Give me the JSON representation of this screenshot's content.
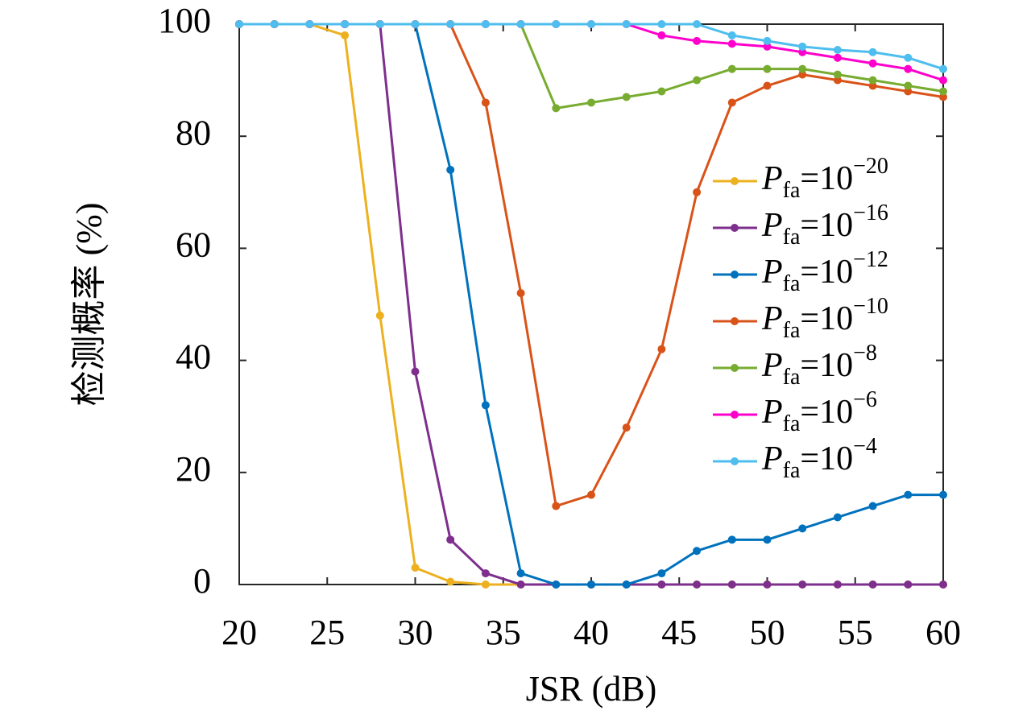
{
  "chart_data": {
    "type": "line",
    "xlabel": "JSR (dB)",
    "ylabel": "检测概率 (%)",
    "x": [
      20,
      22,
      24,
      26,
      28,
      30,
      32,
      34,
      36,
      38,
      40,
      42,
      44,
      46,
      48,
      50,
      52,
      54,
      56,
      58,
      60
    ],
    "xlim": [
      20,
      60
    ],
    "xticks": [
      20,
      25,
      30,
      35,
      40,
      45,
      50,
      55,
      60
    ],
    "ylim": [
      0,
      100
    ],
    "yticks": [
      0,
      20,
      40,
      60,
      80,
      100
    ],
    "legend": "right",
    "series": [
      {
        "name": "Pfa=10−20",
        "color": "#EDB120",
        "values": [
          100,
          100,
          100,
          98,
          48,
          3,
          0.5,
          0,
          0,
          0,
          0,
          0,
          0,
          0,
          0,
          0,
          0,
          0,
          0,
          0,
          0
        ]
      },
      {
        "name": "Pfa=10−16",
        "color": "#7E2F8E",
        "values": [
          100,
          100,
          100,
          100,
          100,
          38,
          8,
          2,
          0,
          0,
          0,
          0,
          0,
          0,
          0,
          0,
          0,
          0,
          0,
          0,
          0
        ]
      },
      {
        "name": "Pfa=10−12",
        "color": "#0072BD",
        "values": [
          100,
          100,
          100,
          100,
          100,
          100,
          74,
          32,
          2,
          0,
          0,
          0,
          2,
          6,
          8,
          8,
          10,
          12,
          14,
          16,
          16
        ]
      },
      {
        "name": "Pfa=10−10",
        "color": "#D95319",
        "values": [
          100,
          100,
          100,
          100,
          100,
          100,
          100,
          86,
          52,
          14,
          16,
          28,
          42,
          70,
          86,
          89,
          91,
          90,
          89,
          88,
          87
        ]
      },
      {
        "name": "Pfa=10−8",
        "color": "#77AC30",
        "values": [
          100,
          100,
          100,
          100,
          100,
          100,
          100,
          100,
          100,
          85,
          86,
          87,
          88,
          90,
          92,
          92,
          92,
          91,
          90,
          89,
          88
        ]
      },
      {
        "name": "Pfa=10−6",
        "color": "#FF00CC",
        "values": [
          100,
          100,
          100,
          100,
          100,
          100,
          100,
          100,
          100,
          100,
          100,
          100,
          98,
          97,
          96.5,
          96,
          95,
          94,
          93,
          92,
          90
        ]
      },
      {
        "name": "Pfa=10−4",
        "color": "#4DBEEE",
        "values": [
          100,
          100,
          100,
          100,
          100,
          100,
          100,
          100,
          100,
          100,
          100,
          100,
          100,
          100,
          98,
          97,
          96,
          95.4,
          95,
          94,
          92
        ]
      }
    ]
  }
}
